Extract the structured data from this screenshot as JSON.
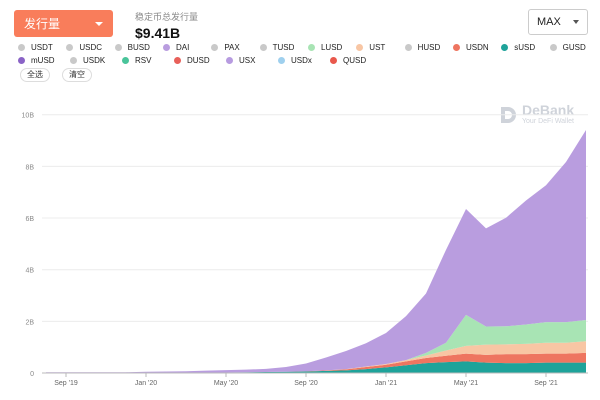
{
  "header": {
    "metric_label": "发行量",
    "total_label": "稳定币总发行量",
    "total_value": "$9.41B",
    "range_label": "MAX"
  },
  "legend_items": [
    {
      "name": "USDT",
      "color": "#c9c9c9"
    },
    {
      "name": "USDC",
      "color": "#c9c9c9"
    },
    {
      "name": "BUSD",
      "color": "#c9c9c9"
    },
    {
      "name": "DAI",
      "color": "#b99ddf"
    },
    {
      "name": "PAX",
      "color": "#c9c9c9"
    },
    {
      "name": "TUSD",
      "color": "#c9c9c9"
    },
    {
      "name": "LUSD",
      "color": "#a8e4b4"
    },
    {
      "name": "UST",
      "color": "#f8c6a4"
    },
    {
      "name": "HUSD",
      "color": "#c9c9c9"
    },
    {
      "name": "USDN",
      "color": "#ee7560"
    },
    {
      "name": "sUSD",
      "color": "#1ea39a"
    },
    {
      "name": "GUSD",
      "color": "#c9c9c9"
    },
    {
      "name": "mUSD",
      "color": "#8a63c6"
    },
    {
      "name": "USDK",
      "color": "#c9c9c9"
    },
    {
      "name": "RSV",
      "color": "#49c49a"
    },
    {
      "name": "DUSD",
      "color": "#e8605a"
    },
    {
      "name": "USX",
      "color": "#b79be0"
    },
    {
      "name": "USDx",
      "color": "#9fd0ee"
    },
    {
      "name": "QUSD",
      "color": "#e9584c"
    }
  ],
  "buttons": {
    "select_all": "全选",
    "clear": "清空"
  },
  "watermark": {
    "title": "DeBank",
    "subtitle": "Your DeFi Wallet"
  },
  "chart_data": {
    "type": "area",
    "stacked": true,
    "x": [
      "2019-08",
      "2019-09",
      "2019-10",
      "2019-11",
      "2019-12",
      "2020-01",
      "2020-02",
      "2020-03",
      "2020-04",
      "2020-05",
      "2020-06",
      "2020-07",
      "2020-08",
      "2020-09",
      "2020-10",
      "2020-11",
      "2020-12",
      "2021-01",
      "2021-02",
      "2021-03",
      "2021-04",
      "2021-05",
      "2021-06",
      "2021-07",
      "2021-08",
      "2021-09",
      "2021-10",
      "2021-11"
    ],
    "x_tick_labels": [
      {
        "x": "2019-09",
        "label": "Sep '19"
      },
      {
        "x": "2020-01",
        "label": "Jan '20"
      },
      {
        "x": "2020-05",
        "label": "May '20"
      },
      {
        "x": "2020-09",
        "label": "Sep '20"
      },
      {
        "x": "2021-01",
        "label": "Jan '21"
      },
      {
        "x": "2021-05",
        "label": "May '21"
      },
      {
        "x": "2021-09",
        "label": "Sep '21"
      }
    ],
    "y_ticks": [
      0,
      2,
      4,
      6,
      8,
      10
    ],
    "y_tick_labels": [
      "0",
      "2B",
      "4B",
      "6B",
      "8B",
      "10B"
    ],
    "ylim": [
      0,
      10.3
    ],
    "grid": true,
    "series": [
      {
        "name": "sUSD",
        "color": "#1ea39a",
        "values": [
          0.0,
          0.0,
          0.0,
          0.0,
          0.0,
          0.01,
          0.01,
          0.01,
          0.01,
          0.02,
          0.03,
          0.04,
          0.05,
          0.06,
          0.08,
          0.1,
          0.15,
          0.22,
          0.3,
          0.38,
          0.42,
          0.45,
          0.4,
          0.38,
          0.38,
          0.4,
          0.4,
          0.4
        ]
      },
      {
        "name": "USDN",
        "color": "#ee7560",
        "values": [
          0.0,
          0.0,
          0.0,
          0.0,
          0.0,
          0.0,
          0.0,
          0.0,
          0.0,
          0.0,
          0.0,
          0.0,
          0.0,
          0.01,
          0.02,
          0.04,
          0.08,
          0.1,
          0.15,
          0.2,
          0.25,
          0.3,
          0.3,
          0.35,
          0.35,
          0.35,
          0.35,
          0.38
        ]
      },
      {
        "name": "UST",
        "color": "#f8c6a4",
        "values": [
          0.0,
          0.0,
          0.0,
          0.0,
          0.0,
          0.0,
          0.0,
          0.0,
          0.0,
          0.0,
          0.0,
          0.0,
          0.0,
          0.0,
          0.0,
          0.01,
          0.02,
          0.03,
          0.05,
          0.1,
          0.2,
          0.3,
          0.4,
          0.38,
          0.4,
          0.42,
          0.42,
          0.45
        ]
      },
      {
        "name": "LUSD",
        "color": "#a8e4b4",
        "values": [
          0.0,
          0.0,
          0.0,
          0.0,
          0.0,
          0.0,
          0.0,
          0.0,
          0.0,
          0.0,
          0.0,
          0.0,
          0.0,
          0.0,
          0.0,
          0.0,
          0.0,
          0.0,
          0.0,
          0.1,
          0.3,
          1.2,
          0.7,
          0.7,
          0.75,
          0.8,
          0.8,
          0.82
        ]
      },
      {
        "name": "DAI",
        "color": "#b99ddf",
        "values": [
          0.03,
          0.03,
          0.03,
          0.03,
          0.03,
          0.04,
          0.05,
          0.06,
          0.08,
          0.09,
          0.1,
          0.12,
          0.18,
          0.3,
          0.5,
          0.7,
          0.9,
          1.2,
          1.7,
          2.3,
          3.6,
          4.1,
          3.8,
          4.2,
          4.8,
          5.3,
          6.2,
          7.36
        ]
      }
    ]
  }
}
